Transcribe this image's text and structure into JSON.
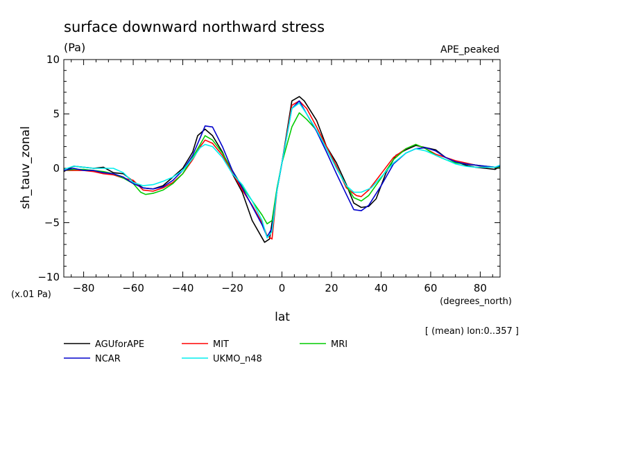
{
  "chart_data": {
    "type": "line",
    "title": "surface downward northward stress",
    "units": "(Pa)",
    "experiment": "APE_peaked",
    "ylabel": "sh_tauv_zonal",
    "yscale_note": "(x.01 Pa)",
    "xlabel": "lat",
    "xunits": "(degrees_north)",
    "subtitle": "[ (mean) lon:0..357 ]",
    "xlim": [
      -88,
      88
    ],
    "ylim": [
      -10,
      10
    ],
    "xticks": [
      -80,
      -60,
      -40,
      -20,
      0,
      20,
      40,
      60,
      80
    ],
    "xtick_labels": [
      "−80",
      "−60",
      "−40",
      "−20",
      "0",
      "20",
      "40",
      "60",
      "80"
    ],
    "yticks": [
      -10,
      -5,
      0,
      5,
      10
    ],
    "ytick_labels": [
      "−10",
      "−5",
      "0",
      "5",
      "10"
    ],
    "grid": false,
    "legend_position": "below",
    "series": [
      {
        "name": "AGUforAPE",
        "color": "#000000",
        "points": [
          [
            -88,
            -0.3
          ],
          [
            -84,
            0.2
          ],
          [
            -80,
            0.1
          ],
          [
            -76,
            0.0
          ],
          [
            -72,
            0.1
          ],
          [
            -68,
            -0.4
          ],
          [
            -64,
            -0.5
          ],
          [
            -60,
            -1.2
          ],
          [
            -56,
            -1.8
          ],
          [
            -52,
            -1.9
          ],
          [
            -48,
            -1.6
          ],
          [
            -44,
            -0.8
          ],
          [
            -40,
            0.0
          ],
          [
            -36,
            1.5
          ],
          [
            -34,
            3.0
          ],
          [
            -31,
            3.6
          ],
          [
            -28,
            3.0
          ],
          [
            -24,
            1.5
          ],
          [
            -20,
            -0.5
          ],
          [
            -16,
            -2.2
          ],
          [
            -12,
            -4.8
          ],
          [
            -7,
            -6.8
          ],
          [
            -5,
            -6.5
          ],
          [
            -2,
            -2.0
          ],
          [
            0,
            0.5
          ],
          [
            4,
            6.2
          ],
          [
            7,
            6.6
          ],
          [
            9,
            6.2
          ],
          [
            14,
            4.4
          ],
          [
            18,
            2.0
          ],
          [
            22,
            0.5
          ],
          [
            26,
            -1.5
          ],
          [
            29,
            -3.2
          ],
          [
            32,
            -3.6
          ],
          [
            35,
            -3.5
          ],
          [
            38,
            -2.8
          ],
          [
            42,
            -0.4
          ],
          [
            46,
            1.2
          ],
          [
            50,
            1.7
          ],
          [
            54,
            2.1
          ],
          [
            58,
            1.9
          ],
          [
            62,
            1.7
          ],
          [
            66,
            1.0
          ],
          [
            70,
            0.6
          ],
          [
            74,
            0.3
          ],
          [
            78,
            0.1
          ],
          [
            82,
            0.0
          ],
          [
            86,
            -0.1
          ],
          [
            88,
            0.2
          ]
        ]
      },
      {
        "name": "MIT",
        "color": "#ff0000",
        "points": [
          [
            -88,
            -0.2
          ],
          [
            -84,
            -0.2
          ],
          [
            -80,
            -0.2
          ],
          [
            -76,
            -0.3
          ],
          [
            -72,
            -0.5
          ],
          [
            -68,
            -0.6
          ],
          [
            -64,
            -0.9
          ],
          [
            -60,
            -1.1
          ],
          [
            -56,
            -2.0
          ],
          [
            -52,
            -2.1
          ],
          [
            -48,
            -1.8
          ],
          [
            -44,
            -1.3
          ],
          [
            -40,
            -0.5
          ],
          [
            -36,
            0.8
          ],
          [
            -33,
            2.0
          ],
          [
            -31,
            2.6
          ],
          [
            -28,
            2.3
          ],
          [
            -24,
            1.2
          ],
          [
            -20,
            -0.4
          ],
          [
            -16,
            -2.0
          ],
          [
            -12,
            -3.4
          ],
          [
            -8,
            -5.0
          ],
          [
            -6,
            -6.2
          ],
          [
            -4,
            -6.5
          ],
          [
            -2,
            -2.0
          ],
          [
            0,
            0.5
          ],
          [
            4,
            5.8
          ],
          [
            7,
            6.2
          ],
          [
            10,
            5.5
          ],
          [
            14,
            3.8
          ],
          [
            18,
            2.0
          ],
          [
            22,
            0.2
          ],
          [
            26,
            -1.8
          ],
          [
            30,
            -2.5
          ],
          [
            32,
            -2.6
          ],
          [
            35,
            -2.0
          ],
          [
            40,
            -0.5
          ],
          [
            45,
            1.0
          ],
          [
            50,
            1.8
          ],
          [
            54,
            2.2
          ],
          [
            58,
            1.8
          ],
          [
            62,
            1.3
          ],
          [
            66,
            1.0
          ],
          [
            70,
            0.7
          ],
          [
            74,
            0.5
          ],
          [
            78,
            0.3
          ],
          [
            82,
            0.1
          ],
          [
            86,
            0.1
          ],
          [
            88,
            0.1
          ]
        ]
      },
      {
        "name": "MRI",
        "color": "#00cc00",
        "points": [
          [
            -88,
            -0.2
          ],
          [
            -84,
            -0.1
          ],
          [
            -80,
            -0.1
          ],
          [
            -76,
            -0.2
          ],
          [
            -72,
            -0.3
          ],
          [
            -68,
            -0.5
          ],
          [
            -64,
            -0.9
          ],
          [
            -60,
            -1.4
          ],
          [
            -57,
            -2.2
          ],
          [
            -55,
            -2.4
          ],
          [
            -52,
            -2.3
          ],
          [
            -48,
            -2.0
          ],
          [
            -44,
            -1.4
          ],
          [
            -40,
            -0.5
          ],
          [
            -36,
            1.0
          ],
          [
            -33,
            2.2
          ],
          [
            -31,
            3.0
          ],
          [
            -28,
            2.6
          ],
          [
            -24,
            1.4
          ],
          [
            -20,
            -0.2
          ],
          [
            -16,
            -1.7
          ],
          [
            -12,
            -3.0
          ],
          [
            -8,
            -4.3
          ],
          [
            -6,
            -5.1
          ],
          [
            -4,
            -4.8
          ],
          [
            -2,
            -1.8
          ],
          [
            0,
            0.5
          ],
          [
            4,
            3.8
          ],
          [
            7,
            5.1
          ],
          [
            10,
            4.5
          ],
          [
            14,
            3.5
          ],
          [
            18,
            1.8
          ],
          [
            22,
            0.0
          ],
          [
            26,
            -1.6
          ],
          [
            29,
            -2.7
          ],
          [
            32,
            -3.0
          ],
          [
            35,
            -2.5
          ],
          [
            40,
            -0.9
          ],
          [
            45,
            0.8
          ],
          [
            50,
            1.8
          ],
          [
            54,
            2.2
          ],
          [
            58,
            1.8
          ],
          [
            62,
            1.2
          ],
          [
            66,
            0.8
          ],
          [
            70,
            0.5
          ],
          [
            74,
            0.4
          ],
          [
            78,
            0.3
          ],
          [
            82,
            0.2
          ],
          [
            86,
            0.1
          ],
          [
            88,
            0.1
          ]
        ]
      },
      {
        "name": "NCAR",
        "color": "#0000cc",
        "points": [
          [
            -88,
            -0.2
          ],
          [
            -84,
            0.0
          ],
          [
            -80,
            -0.2
          ],
          [
            -76,
            -0.2
          ],
          [
            -72,
            -0.4
          ],
          [
            -68,
            -0.5
          ],
          [
            -64,
            -0.8
          ],
          [
            -60,
            -1.4
          ],
          [
            -56,
            -1.8
          ],
          [
            -52,
            -1.9
          ],
          [
            -48,
            -1.7
          ],
          [
            -44,
            -1.1
          ],
          [
            -40,
            -0.2
          ],
          [
            -36,
            1.2
          ],
          [
            -33,
            2.8
          ],
          [
            -31,
            3.9
          ],
          [
            -28,
            3.8
          ],
          [
            -24,
            2.0
          ],
          [
            -20,
            -0.2
          ],
          [
            -16,
            -1.8
          ],
          [
            -12,
            -3.5
          ],
          [
            -8,
            -5.2
          ],
          [
            -6,
            -6.3
          ],
          [
            -4,
            -5.5
          ],
          [
            -2,
            -2.0
          ],
          [
            0,
            0.5
          ],
          [
            4,
            5.5
          ],
          [
            7,
            6.2
          ],
          [
            10,
            5.0
          ],
          [
            14,
            3.4
          ],
          [
            18,
            1.5
          ],
          [
            22,
            -0.5
          ],
          [
            26,
            -2.4
          ],
          [
            29,
            -3.8
          ],
          [
            32,
            -3.9
          ],
          [
            35,
            -3.4
          ],
          [
            40,
            -1.6
          ],
          [
            45,
            0.4
          ],
          [
            50,
            1.4
          ],
          [
            54,
            1.8
          ],
          [
            58,
            1.9
          ],
          [
            62,
            1.6
          ],
          [
            66,
            1.0
          ],
          [
            70,
            0.6
          ],
          [
            74,
            0.4
          ],
          [
            78,
            0.3
          ],
          [
            82,
            0.2
          ],
          [
            86,
            0.1
          ],
          [
            88,
            0.2
          ]
        ]
      },
      {
        "name": "UKMO_n48",
        "color": "#00eeee",
        "points": [
          [
            -88,
            -0.1
          ],
          [
            -84,
            0.2
          ],
          [
            -80,
            0.1
          ],
          [
            -76,
            0.0
          ],
          [
            -72,
            0.0
          ],
          [
            -68,
            0.0
          ],
          [
            -64,
            -0.4
          ],
          [
            -60,
            -1.3
          ],
          [
            -56,
            -1.6
          ],
          [
            -52,
            -1.5
          ],
          [
            -48,
            -1.2
          ],
          [
            -44,
            -0.8
          ],
          [
            -40,
            -0.2
          ],
          [
            -36,
            0.9
          ],
          [
            -33,
            1.9
          ],
          [
            -31,
            2.2
          ],
          [
            -28,
            2.0
          ],
          [
            -24,
            1.0
          ],
          [
            -20,
            -0.5
          ],
          [
            -16,
            -1.5
          ],
          [
            -12,
            -3.0
          ],
          [
            -8,
            -4.8
          ],
          [
            -6,
            -6.4
          ],
          [
            -4,
            -5.8
          ],
          [
            -2,
            -2.0
          ],
          [
            0,
            0.5
          ],
          [
            4,
            5.5
          ],
          [
            7,
            6.0
          ],
          [
            10,
            5.0
          ],
          [
            14,
            3.5
          ],
          [
            18,
            1.8
          ],
          [
            22,
            0.0
          ],
          [
            26,
            -1.6
          ],
          [
            29,
            -2.2
          ],
          [
            32,
            -2.2
          ],
          [
            36,
            -1.8
          ],
          [
            40,
            -0.8
          ],
          [
            45,
            0.5
          ],
          [
            50,
            1.4
          ],
          [
            54,
            1.8
          ],
          [
            58,
            1.6
          ],
          [
            62,
            1.2
          ],
          [
            66,
            0.8
          ],
          [
            70,
            0.4
          ],
          [
            74,
            0.2
          ],
          [
            78,
            0.1
          ],
          [
            82,
            0.1
          ],
          [
            86,
            0.1
          ],
          [
            88,
            0.3
          ]
        ]
      }
    ]
  }
}
